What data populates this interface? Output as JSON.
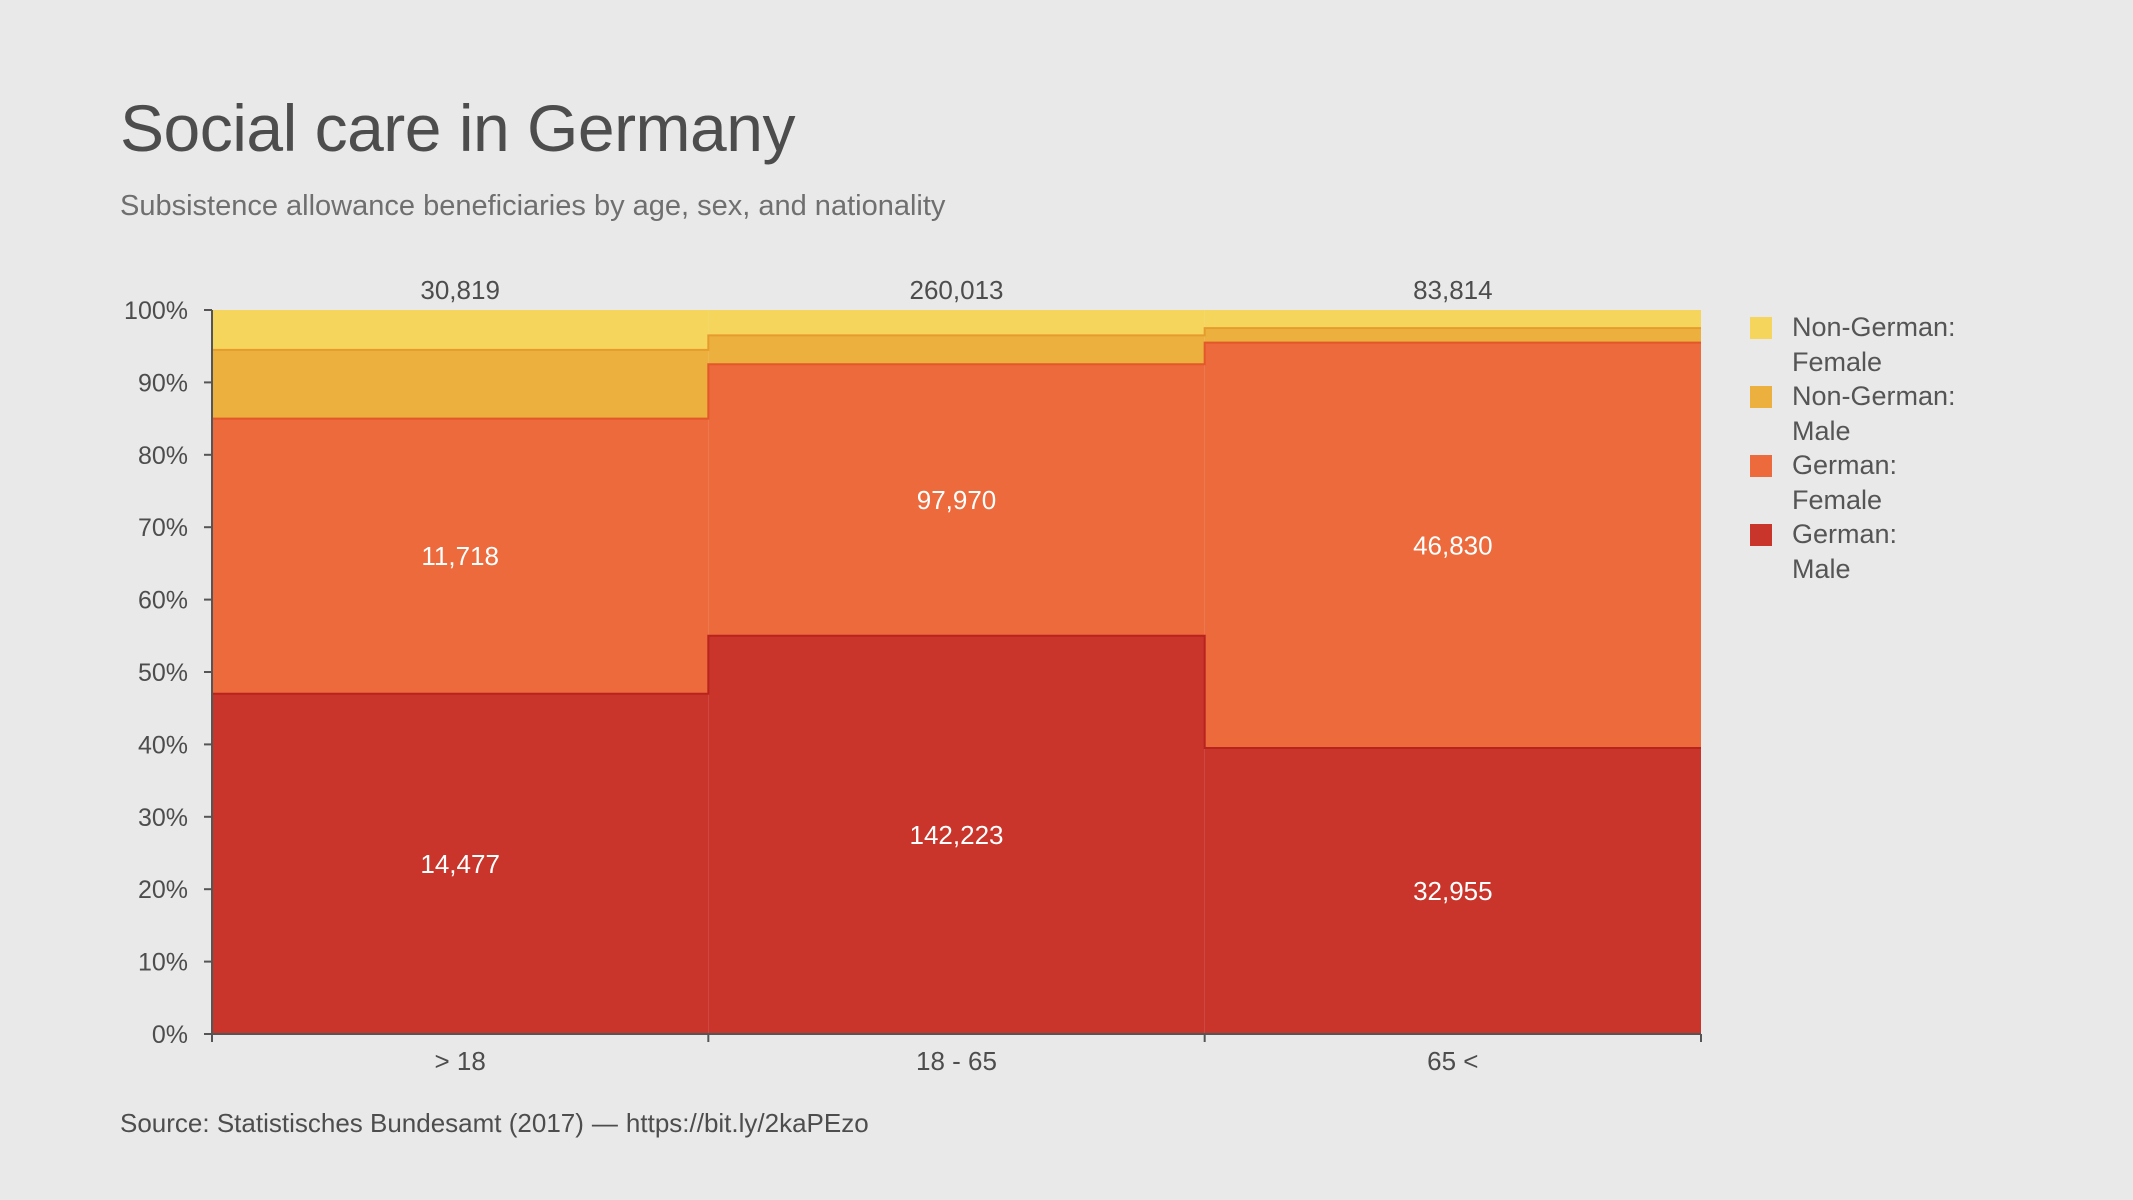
{
  "title": "Social care in Germany",
  "subtitle": "Subsistence allowance beneficiaries by age, sex, and nationality",
  "source": {
    "label": "Source: Statistisches Bundesamt (2017)",
    "separator": "—",
    "link": "https://bit.ly/2kaPEzo"
  },
  "colors": {
    "background": "#e9e9e9",
    "non_german_female": "#f6d55c",
    "non_german_male": "#ecb03f",
    "german_female": "#ec6a3b",
    "german_male": "#c9352b",
    "axis": "#555555"
  },
  "chart_data": {
    "type": "area",
    "variant": "stacked-percent-step (marimekko)",
    "title": "Social care in Germany",
    "subtitle": "Subsistence allowance beneficiaries by age, sex, and nationality",
    "categories": [
      "> 18",
      "18 - 65",
      "65 <"
    ],
    "totals": [
      "30,819",
      "260,013",
      "83,814"
    ],
    "ylim": [
      0,
      100
    ],
    "y_ticks": [
      "0%",
      "10%",
      "20%",
      "30%",
      "40%",
      "50%",
      "60%",
      "70%",
      "80%",
      "90%",
      "100%"
    ],
    "legend_position": "right",
    "grid": false,
    "series": [
      {
        "name": "German: Male",
        "color": "#c9352b",
        "percent": [
          47,
          55,
          39.5
        ],
        "labels": [
          "14,477",
          "142,223",
          "32,955"
        ]
      },
      {
        "name": "German: Female",
        "color": "#ec6a3b",
        "percent": [
          38,
          37.5,
          56
        ],
        "labels": [
          "11,718",
          "97,970",
          "46,830"
        ]
      },
      {
        "name": "Non-German: Male",
        "color": "#ecb03f",
        "percent": [
          9.5,
          4,
          2
        ],
        "labels": [
          "",
          "",
          ""
        ]
      },
      {
        "name": "Non-German: Female",
        "color": "#f6d55c",
        "percent": [
          5.5,
          3.5,
          2.5
        ],
        "labels": [
          "",
          "",
          ""
        ]
      }
    ],
    "legend": [
      {
        "label": "Non-German:\nFemale",
        "color": "#f6d55c"
      },
      {
        "label": "Non-German:\nMale",
        "color": "#ecb03f"
      },
      {
        "label": "German:\nFemale",
        "color": "#ec6a3b"
      },
      {
        "label": "German:\nMale",
        "color": "#c9352b"
      }
    ]
  }
}
